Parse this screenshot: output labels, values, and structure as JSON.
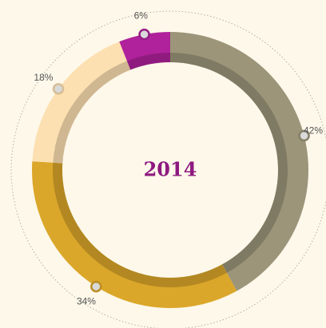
{
  "chart_data": {
    "type": "donut",
    "title": "2014",
    "categories": [
      null,
      null,
      null,
      null
    ],
    "values": [
      42,
      34,
      18,
      6
    ],
    "value_labels": [
      "42%",
      "34%",
      "18%",
      "6%"
    ],
    "colors": [
      "#9c9579",
      "#dba72a",
      "#fde0b1",
      "#b0229b"
    ]
  }
}
